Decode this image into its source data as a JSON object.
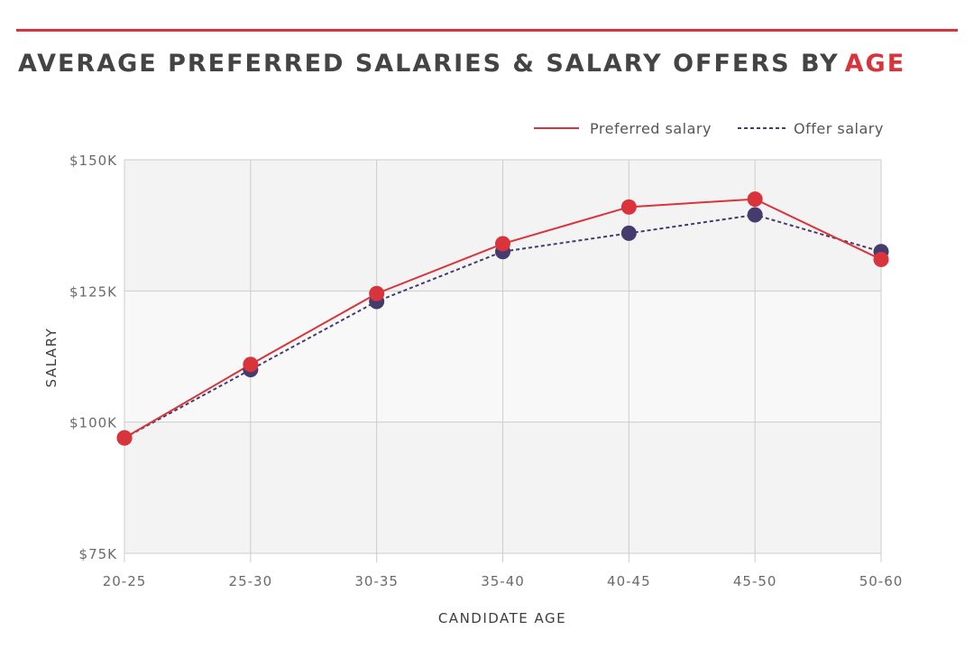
{
  "title": {
    "main": "AVERAGE PREFERRED SALARIES & SALARY OFFERS BY",
    "accent": "AGE"
  },
  "colors": {
    "preferred": "#d9343b",
    "offer": "#453b6e",
    "rule": "#d9343b",
    "band_light": "#f3f3f3",
    "band_lighter": "#f8f8f8",
    "grid": "#cccccc"
  },
  "chart_data": {
    "type": "line",
    "categories": [
      "20-25",
      "25-30",
      "30-35",
      "35-40",
      "40-45",
      "45-50",
      "50-60"
    ],
    "series": [
      {
        "name": "Preferred salary",
        "key": "preferred",
        "values": [
          97,
          111,
          124.5,
          134,
          141,
          142.5,
          131
        ]
      },
      {
        "name": "Offer salary",
        "key": "offer",
        "values": [
          97,
          110,
          123,
          132.5,
          136,
          139.5,
          132.5
        ]
      }
    ],
    "xlabel": "CANDIDATE AGE",
    "ylabel": "SALARY",
    "ylim": [
      75,
      150
    ],
    "y_ticks": [
      {
        "value": 75,
        "label": "$75K"
      },
      {
        "value": 100,
        "label": "$100K"
      },
      {
        "value": 125,
        "label": "$125K"
      },
      {
        "value": 150,
        "label": "$150K"
      }
    ],
    "grid": true,
    "legend_position": "top-right"
  }
}
